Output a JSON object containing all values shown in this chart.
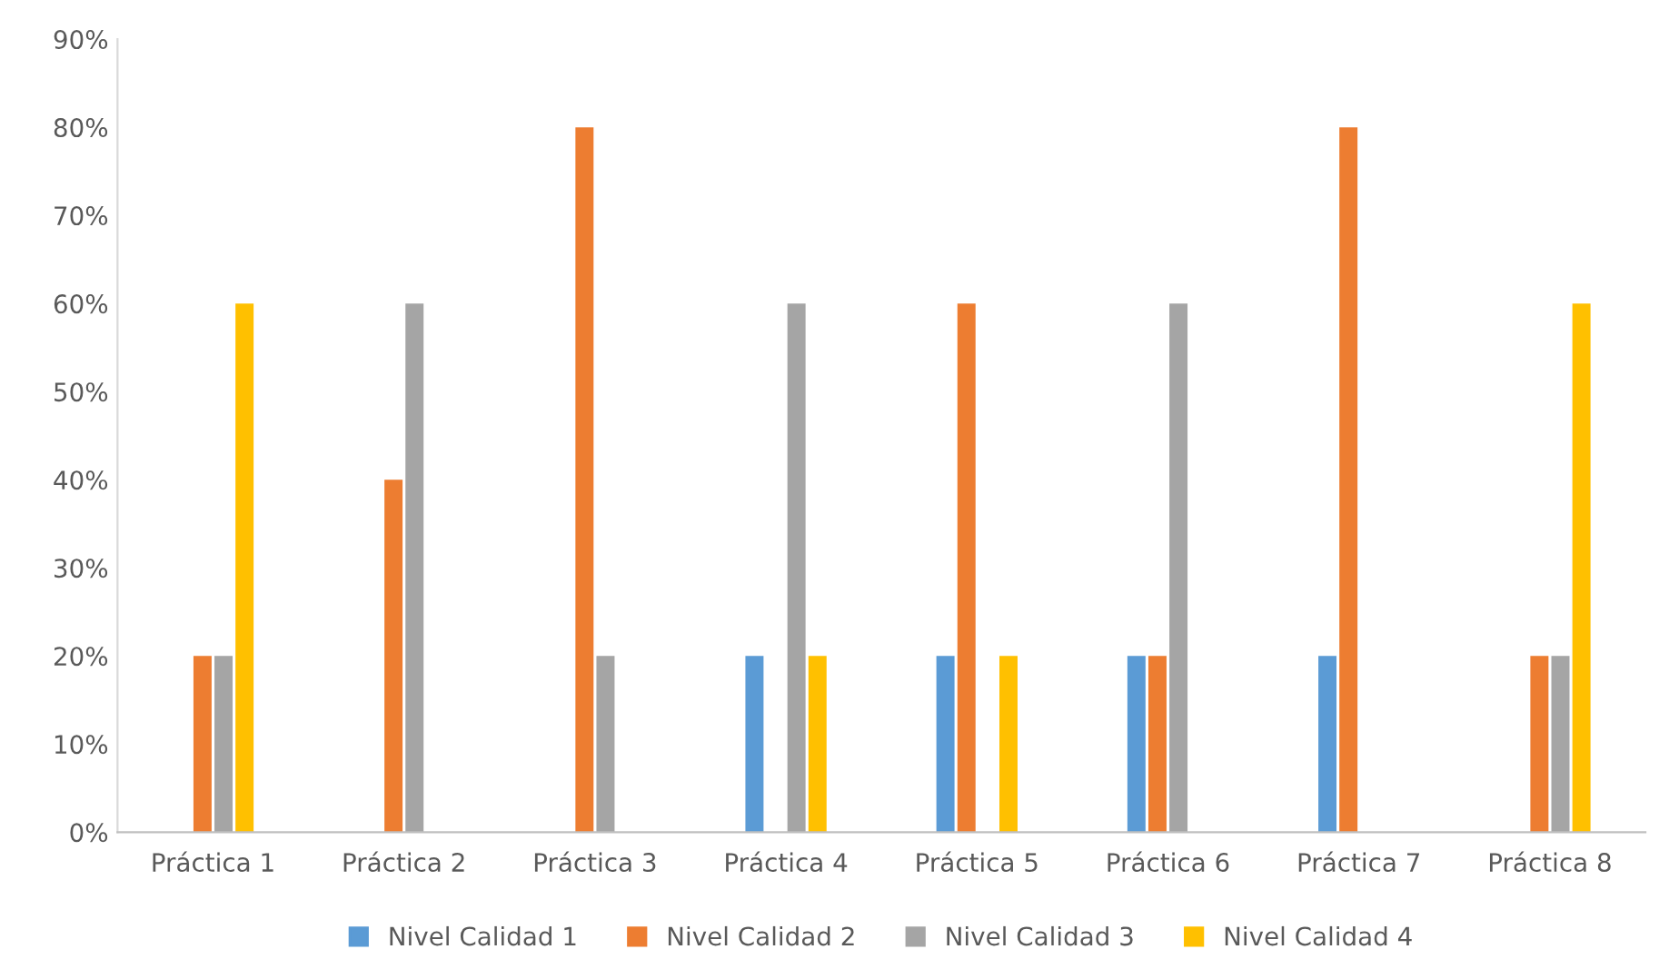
{
  "chart_data": {
    "type": "bar",
    "categories": [
      "Práctica 1",
      "Práctica 2",
      "Práctica 3",
      "Práctica 4",
      "Práctica 5",
      "Práctica 6",
      "Práctica 7",
      "Práctica 8"
    ],
    "series": [
      {
        "name": "Nivel Calidad 1",
        "color": "#5b9bd5",
        "values": [
          0,
          0,
          0,
          20,
          20,
          20,
          20,
          0
        ]
      },
      {
        "name": "Nivel Calidad 2",
        "color": "#ed7d31",
        "values": [
          20,
          40,
          80,
          0,
          60,
          20,
          80,
          20
        ]
      },
      {
        "name": "Nivel Calidad 3",
        "color": "#a5a5a5",
        "values": [
          20,
          60,
          20,
          60,
          0,
          60,
          0,
          20
        ]
      },
      {
        "name": "Nivel Calidad 4",
        "color": "#ffc000",
        "values": [
          60,
          0,
          0,
          20,
          20,
          0,
          0,
          60
        ]
      }
    ],
    "ylim": [
      0,
      90
    ],
    "yticks": [
      {
        "value": 0,
        "label": "0%"
      },
      {
        "value": 10,
        "label": "10%"
      },
      {
        "value": 20,
        "label": "20%"
      },
      {
        "value": 30,
        "label": "30%"
      },
      {
        "value": 40,
        "label": "40%"
      },
      {
        "value": 50,
        "label": "50%"
      },
      {
        "value": 60,
        "label": "60%"
      },
      {
        "value": 70,
        "label": "70%"
      },
      {
        "value": 80,
        "label": "80%"
      },
      {
        "value": 90,
        "label": "90%"
      }
    ],
    "grid": false,
    "legend": "bottom"
  }
}
